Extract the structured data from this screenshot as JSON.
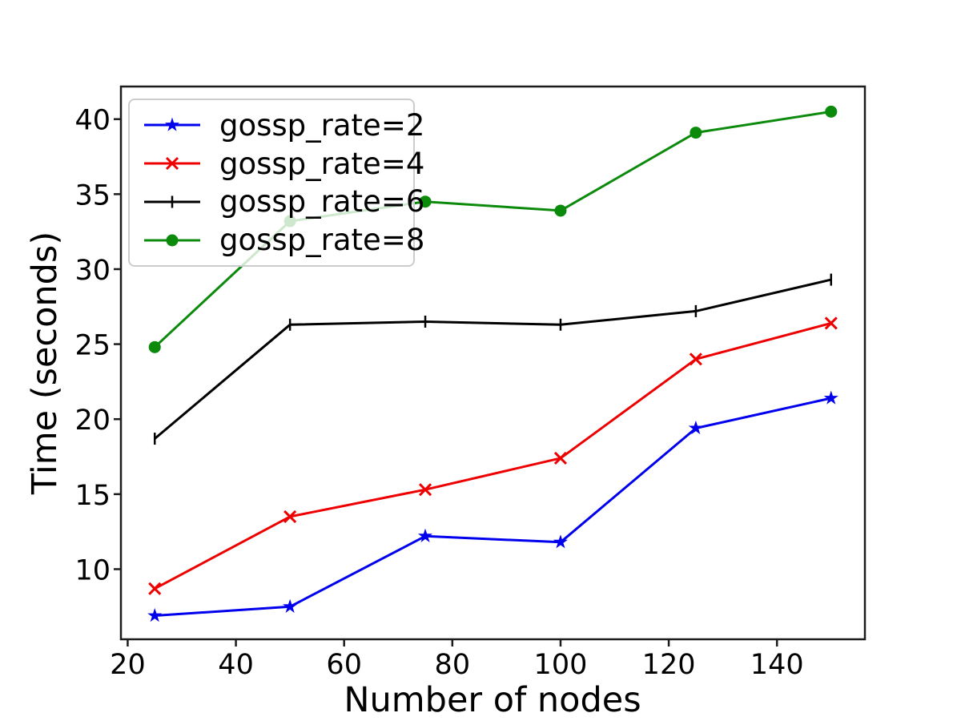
{
  "chart_data": {
    "type": "line",
    "title": "",
    "xlabel": "Number of nodes",
    "ylabel": "Time (seconds)",
    "x": [
      25,
      50,
      75,
      100,
      125,
      150
    ],
    "series": [
      {
        "name": "gossp_rate=2",
        "color": "#0000ee",
        "marker": "star",
        "values": [
          6.9,
          7.5,
          12.2,
          11.8,
          19.4,
          21.4
        ]
      },
      {
        "name": "gossp_rate=4",
        "color": "#ee0000",
        "marker": "x",
        "values": [
          8.7,
          13.5,
          15.3,
          17.4,
          24.0,
          26.4
        ]
      },
      {
        "name": "gossp_rate=6",
        "color": "#000000",
        "marker": "vline",
        "values": [
          18.7,
          26.3,
          26.5,
          26.3,
          27.2,
          29.3
        ]
      },
      {
        "name": "gossp_rate=8",
        "color": "#0b8a0b",
        "marker": "circle",
        "values": [
          24.8,
          33.2,
          34.5,
          33.9,
          39.1,
          40.5
        ]
      }
    ],
    "xticks": [
      20,
      40,
      60,
      80,
      100,
      120,
      140
    ],
    "yticks": [
      10,
      15,
      20,
      25,
      30,
      35,
      40
    ],
    "xlim": [
      18.75,
      156.25
    ],
    "ylim": [
      5.325,
      42.175
    ],
    "grid": false,
    "legend_position": "upper-left",
    "axis_color": "#1c1c1c"
  }
}
